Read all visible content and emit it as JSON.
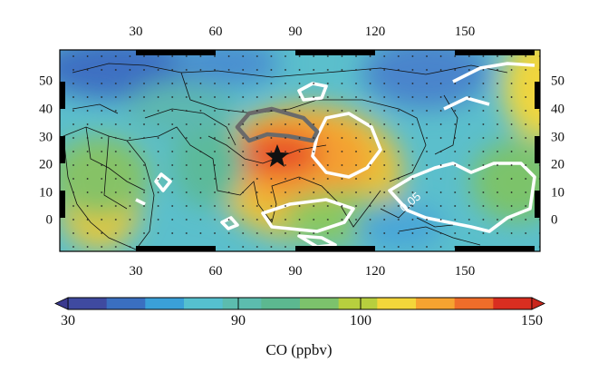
{
  "map": {
    "top_ticks": [
      "30",
      "60",
      "90",
      "120",
      "150"
    ],
    "bottom_ticks": [
      "30",
      "60",
      "90",
      "120",
      "150"
    ],
    "left_ticks": [
      "50",
      "40",
      "30",
      "20",
      "10",
      "0"
    ],
    "right_ticks": [
      "50",
      "40",
      "30",
      "20",
      "10",
      "0"
    ],
    "contour_label": "0.05",
    "marker_icon": "star-marker-icon"
  },
  "colorbar": {
    "labels": [
      "30",
      "90",
      "100",
      "150"
    ],
    "title": "CO (ppbv)",
    "colors": [
      "#3f4aa0",
      "#3a6fc0",
      "#3aa0d8",
      "#55c0cf",
      "#5cbcae",
      "#5cb890",
      "#7cc26c",
      "#b7cf3e",
      "#f3d63a",
      "#f6a330",
      "#ef6d2a",
      "#d92e20"
    ]
  }
}
